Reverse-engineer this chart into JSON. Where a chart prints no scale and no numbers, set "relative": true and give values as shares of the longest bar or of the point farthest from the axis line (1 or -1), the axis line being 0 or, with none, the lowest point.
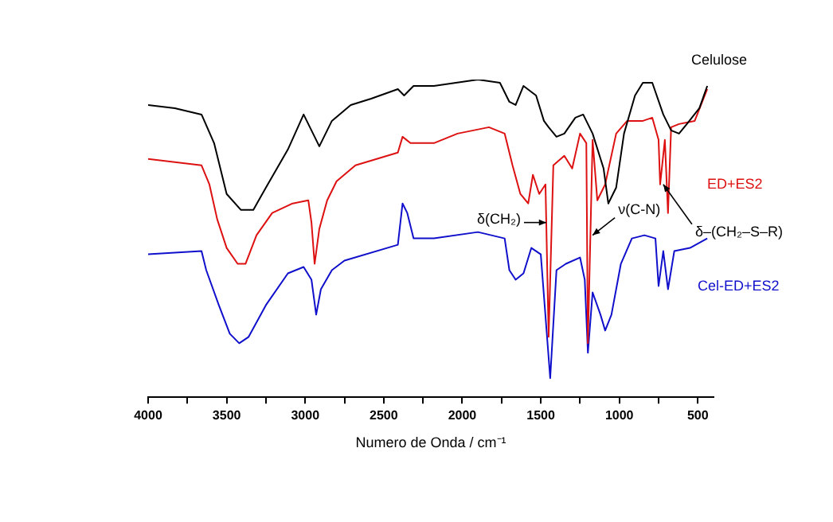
{
  "chart_data": {
    "type": "line",
    "xlabel": "Numero de Onda / cm⁻¹",
    "relative": true,
    "xlim": [
      4000,
      400
    ],
    "xticks": [
      4000,
      {
        "value": 3750,
        "label": null
      },
      3500,
      {
        "value": 3250,
        "label": null
      },
      3000,
      {
        "value": 2750,
        "label": null
      },
      2500,
      {
        "value": 2250,
        "label": null
      },
      2000,
      {
        "value": 1750,
        "label": null
      },
      1500,
      {
        "value": 1250,
        "label": null
      },
      1000,
      {
        "value": 750,
        "label": null
      },
      500
    ],
    "grid": false,
    "legend": false,
    "marker": "none",
    "series": [
      {
        "name": "Celulose",
        "color": "#000000",
        "x": [
          4000,
          3830,
          3660,
          3580,
          3500,
          3410,
          3330,
          3250,
          3110,
          3010,
          2910,
          2830,
          2710,
          2580,
          2410,
          2370,
          2310,
          2180,
          1900,
          1760,
          1700,
          1660,
          1610,
          1530,
          1480,
          1450,
          1400,
          1350,
          1280,
          1230,
          1170,
          1100,
          1070,
          1020,
          970,
          900,
          850,
          790,
          720,
          670,
          620,
          570,
          490,
          440
        ],
        "values": [
          0.92,
          0.91,
          0.89,
          0.8,
          0.64,
          0.59,
          0.59,
          0.66,
          0.78,
          0.89,
          0.79,
          0.87,
          0.92,
          0.94,
          0.97,
          0.95,
          0.98,
          0.98,
          1,
          0.99,
          0.93,
          0.92,
          0.98,
          0.95,
          0.87,
          0.85,
          0.82,
          0.83,
          0.88,
          0.89,
          0.83,
          0.72,
          0.61,
          0.66,
          0.83,
          0.95,
          0.99,
          0.99,
          0.89,
          0.84,
          0.83,
          0.86,
          0.91,
          0.98
        ]
      },
      {
        "name": "ED+ES2",
        "color": "#dd1111",
        "x": [
          4000,
          3660,
          3610,
          3560,
          3500,
          3430,
          3380,
          3310,
          3210,
          3080,
          2980,
          2960,
          2940,
          2910,
          2860,
          2800,
          2680,
          2410,
          2380,
          2330,
          2180,
          2030,
          1830,
          1730,
          1680,
          1630,
          1580,
          1550,
          1510,
          1470,
          1450,
          1420,
          1350,
          1300,
          1250,
          1210,
          1200,
          1170,
          1140,
          1090,
          1020,
          950,
          850,
          790,
          750,
          740,
          710,
          690,
          670,
          620,
          520,
          440
        ],
        "values": [
          0.75,
          0.73,
          0.67,
          0.56,
          0.47,
          0.42,
          0.42,
          0.51,
          0.58,
          0.61,
          0.62,
          0.55,
          0.42,
          0.53,
          0.62,
          0.68,
          0.73,
          0.77,
          0.82,
          0.8,
          0.8,
          0.83,
          0.85,
          0.83,
          0.73,
          0.64,
          0.61,
          0.7,
          0.64,
          0.67,
          0.19,
          0.73,
          0.76,
          0.72,
          0.83,
          0.8,
          0.17,
          0.81,
          0.62,
          0.67,
          0.83,
          0.87,
          0.87,
          0.88,
          0.81,
          0.67,
          0.81,
          0.58,
          0.85,
          0.86,
          0.87,
          0.97
        ]
      },
      {
        "name": "Cel-ED+ES2",
        "color": "#1010cc",
        "x": [
          4000,
          3660,
          3630,
          3550,
          3480,
          3420,
          3360,
          3250,
          3110,
          3010,
          2960,
          2930,
          2900,
          2830,
          2750,
          2410,
          2380,
          2350,
          2310,
          2180,
          1900,
          1730,
          1700,
          1660,
          1610,
          1560,
          1500,
          1440,
          1400,
          1340,
          1250,
          1220,
          1200,
          1170,
          1120,
          1090,
          1050,
          990,
          920,
          840,
          770,
          750,
          720,
          690,
          650,
          550,
          440
        ],
        "values": [
          0.45,
          0.46,
          0.4,
          0.29,
          0.2,
          0.17,
          0.19,
          0.29,
          0.39,
          0.41,
          0.37,
          0.26,
          0.34,
          0.4,
          0.43,
          0.48,
          0.61,
          0.58,
          0.5,
          0.5,
          0.52,
          0.5,
          0.4,
          0.37,
          0.39,
          0.47,
          0.45,
          0.06,
          0.4,
          0.42,
          0.44,
          0.37,
          0.14,
          0.33,
          0.26,
          0.21,
          0.26,
          0.42,
          0.5,
          0.51,
          0.5,
          0.35,
          0.46,
          0.34,
          0.46,
          0.47,
          0.5
        ]
      }
    ],
    "annotations": [
      {
        "text": "δ(CH₂)",
        "x": 1465,
        "y": 0.55
      },
      {
        "text": "ν(C-N)",
        "x": 1170,
        "y": 0.51
      },
      {
        "text": "δ–(CH₂–S–R)",
        "x": 720,
        "y": 0.67
      }
    ]
  }
}
